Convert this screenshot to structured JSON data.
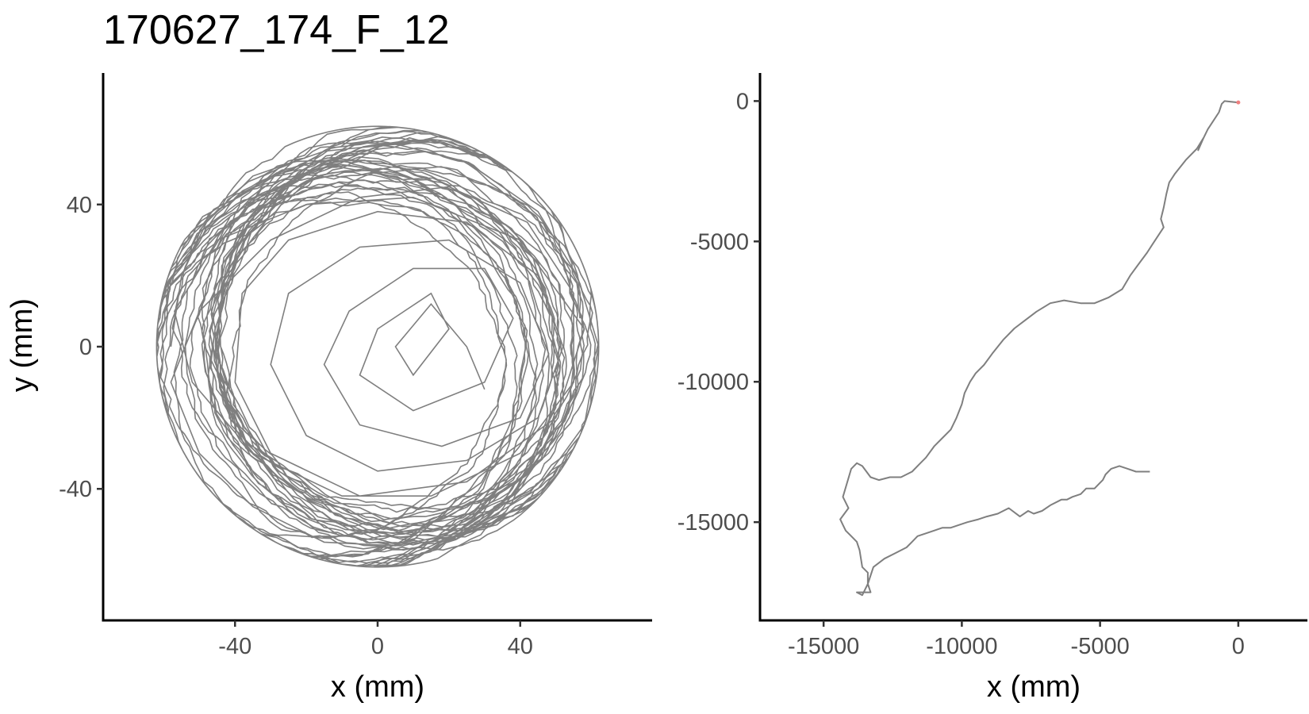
{
  "title": "170627_174_F_12",
  "colors": {
    "trajectory": "#7f7f7f",
    "axis": "#000000",
    "tick_text": "#4d4d4d",
    "start_marker": "#f08080"
  },
  "chart_data": [
    {
      "type": "line",
      "panel": "left",
      "title": "170627_174_F_12",
      "xlabel": "x (mm)",
      "ylabel": "y (mm)",
      "xlim": [
        -77,
        77
      ],
      "ylim": [
        -77,
        77
      ],
      "xticks": [
        -40,
        0,
        40
      ],
      "yticks": [
        -40,
        0,
        40
      ],
      "grid": false,
      "series": [
        {
          "style": "looping trajectory inside a circular arena",
          "arena_center": [
            0,
            0
          ],
          "arena_radius": 62,
          "x": [
            -58,
            -55,
            -48,
            -35,
            -15,
            5,
            25,
            45,
            56,
            62,
            58,
            45,
            25,
            5,
            -15,
            -35,
            -50,
            -58,
            -50,
            -30,
            -5,
            20,
            42,
            55,
            55,
            40,
            15,
            -10,
            -35,
            -52,
            -57,
            -45,
            -20,
            10,
            40,
            58,
            50,
            25,
            -5,
            -30,
            -40,
            -38,
            -25,
            0,
            25,
            45,
            52,
            45,
            25,
            0,
            -20,
            -30,
            -25,
            -5,
            20,
            40,
            48,
            40,
            18,
            -5,
            -15,
            -8,
            10,
            30,
            38,
            30,
            10,
            -5,
            0,
            15,
            20,
            10,
            5,
            15,
            25,
            30
          ],
          "y": [
            0,
            20,
            35,
            48,
            55,
            57,
            52,
            38,
            20,
            0,
            -22,
            -40,
            -52,
            -56,
            -55,
            -45,
            -30,
            -10,
            10,
            30,
            42,
            45,
            35,
            15,
            -10,
            -30,
            -42,
            -42,
            -30,
            -10,
            10,
            30,
            40,
            42,
            30,
            5,
            -20,
            -38,
            -42,
            -30,
            -10,
            15,
            30,
            38,
            35,
            20,
            0,
            -20,
            -32,
            -35,
            -25,
            -5,
            15,
            28,
            30,
            18,
            -2,
            -20,
            -28,
            -22,
            -5,
            10,
            22,
            22,
            8,
            -10,
            -18,
            -8,
            5,
            15,
            5,
            -8,
            0,
            12,
            0,
            -12
          ]
        }
      ]
    },
    {
      "type": "line",
      "panel": "right",
      "xlabel": "x (mm)",
      "ylabel": "",
      "xlim": [
        -17300,
        2500
      ],
      "ylim": [
        -18500,
        1000
      ],
      "xticks": [
        -15000,
        -10000,
        -5000,
        0
      ],
      "yticks": [
        0,
        -5000,
        -10000,
        -15000
      ],
      "grid": false,
      "series": [
        {
          "style": "cumulative path",
          "x": [
            0,
            -500,
            -600,
            -700,
            -900,
            -1100,
            -1300,
            -1450,
            -1250,
            -1500,
            -1900,
            -2300,
            -2500,
            -2600,
            -2700,
            -2800,
            -2700,
            -2900,
            -3100,
            -3300,
            -3600,
            -3900,
            -4200,
            -4700,
            -5200,
            -5700,
            -6300,
            -6800,
            -7300,
            -7700,
            -8100,
            -8500,
            -8900,
            -9200,
            -9500,
            -9700,
            -9900,
            -10000,
            -10200,
            -10400,
            -10700,
            -11000,
            -11300,
            -11500,
            -11800,
            -12000,
            -12200,
            -12600,
            -13000,
            -13300,
            -13600,
            -13800,
            -14000,
            -14300,
            -14100,
            -14400,
            -14300,
            -14200,
            -14000,
            -13800,
            -13700,
            -13600,
            -13400,
            -13400,
            -13300,
            -13800,
            -13600,
            -13400,
            -13200,
            -12800,
            -12400,
            -12000,
            -11800,
            -11600,
            -11300,
            -11000,
            -10700,
            -10400,
            -10100,
            -9800,
            -9400,
            -9100,
            -8700,
            -8300,
            -7900,
            -7600,
            -7400,
            -7100,
            -6800,
            -6400,
            -6200,
            -6000,
            -5700,
            -5500,
            -5200,
            -5000,
            -4900,
            -4800,
            -4600,
            -4300,
            -4000,
            -3700,
            -3500,
            -3200
          ],
          "y": [
            -50,
            0,
            -100,
            -400,
            -700,
            -1000,
            -1400,
            -1750,
            -1300,
            -1700,
            -2100,
            -2600,
            -2900,
            -3300,
            -3800,
            -4200,
            -4500,
            -4800,
            -5100,
            -5400,
            -5800,
            -6200,
            -6700,
            -7000,
            -7200,
            -7200,
            -7100,
            -7200,
            -7500,
            -7800,
            -8100,
            -8500,
            -9000,
            -9400,
            -9700,
            -10000,
            -10400,
            -10800,
            -11300,
            -11700,
            -12000,
            -12300,
            -12700,
            -12900,
            -13200,
            -13300,
            -13400,
            -13400,
            -13500,
            -13400,
            -13000,
            -12900,
            -13100,
            -14100,
            -14500,
            -14900,
            -15100,
            -15300,
            -15500,
            -15700,
            -16000,
            -16600,
            -16800,
            -17200,
            -17500,
            -17500,
            -17600,
            -17200,
            -16600,
            -16300,
            -16100,
            -15900,
            -15700,
            -15500,
            -15400,
            -15300,
            -15200,
            -15200,
            -15100,
            -15000,
            -14900,
            -14800,
            -14700,
            -14500,
            -14800,
            -14600,
            -14700,
            -14600,
            -14400,
            -14200,
            -14200,
            -14100,
            -14000,
            -13800,
            -13800,
            -13600,
            -13500,
            -13300,
            -13100,
            -13000,
            -13100,
            -13200,
            -13200,
            -13200
          ]
        }
      ]
    }
  ]
}
